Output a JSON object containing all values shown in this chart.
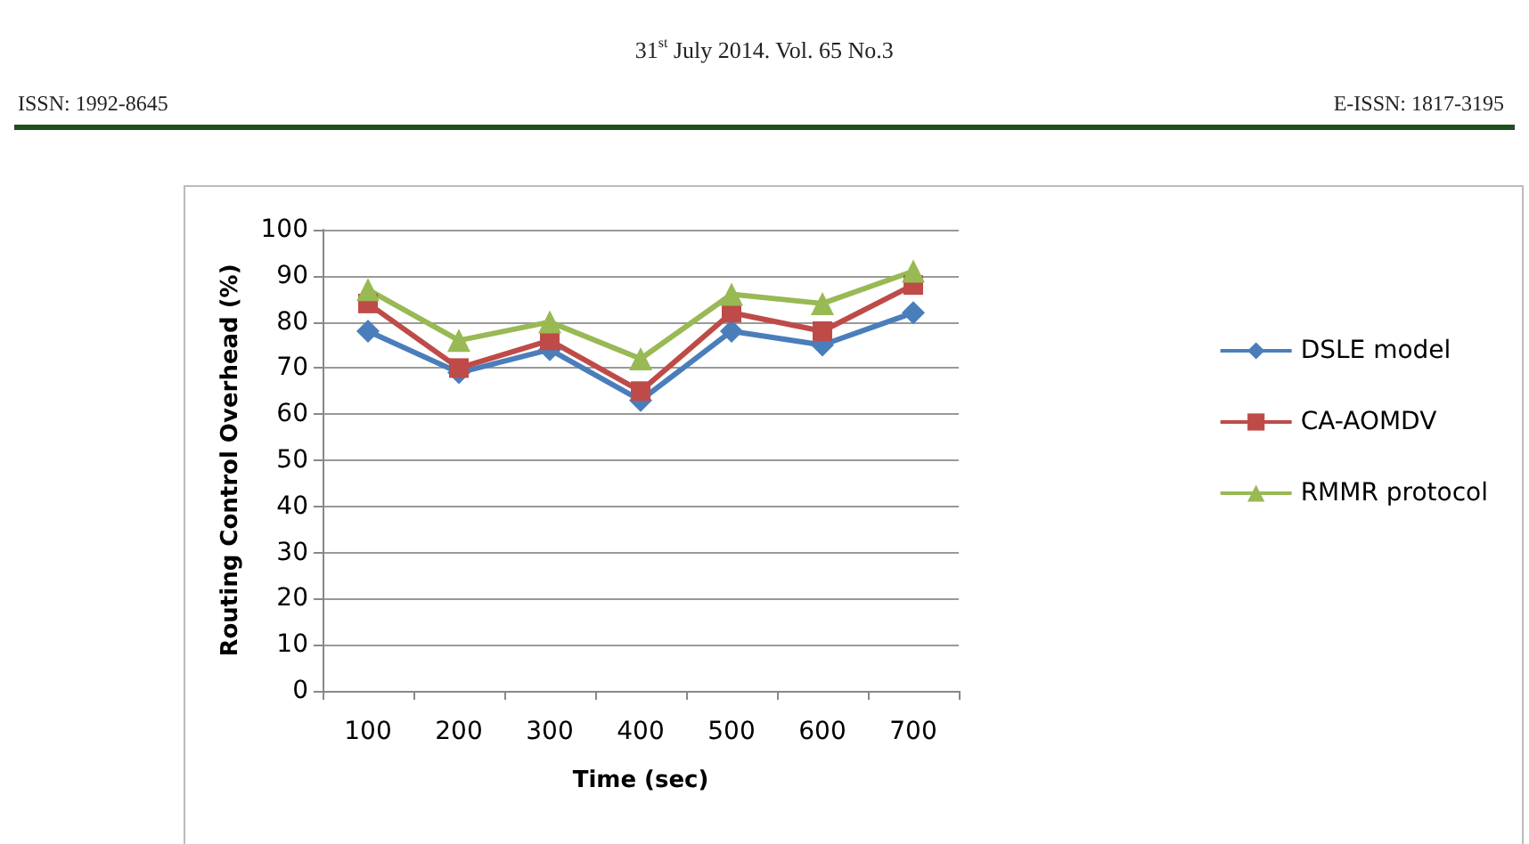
{
  "chart_data": {
    "type": "line",
    "xlabel": "Time (sec)",
    "ylabel": "Routing Control Overhead (%)",
    "categories": [
      "100",
      "200",
      "300",
      "400",
      "500",
      "600",
      "700"
    ],
    "series": [
      {
        "name": "DSLE model",
        "color": "#4a7ebb",
        "values": [
          78,
          69,
          74,
          63,
          78,
          75,
          82
        ],
        "marker": "diamond"
      },
      {
        "name": "CA-AOMDV",
        "color": "#be4b48",
        "values": [
          84,
          70,
          76,
          65,
          82,
          78,
          88
        ],
        "marker": "square"
      },
      {
        "name": "RMMR protocol",
        "color": "#98b954",
        "values": [
          87,
          76,
          80,
          72,
          86,
          84,
          91
        ],
        "marker": "triangle"
      }
    ],
    "ylim": [
      0,
      100
    ],
    "yticks": [
      0,
      10,
      20,
      30,
      40,
      50,
      60,
      70,
      80,
      90,
      100
    ],
    "grid": "y",
    "legend": "right",
    "annotations": [
      "31$^{st}$ July 2014. Vol. 65 No.3",
      "ISSN: 1992-8645",
      "E-ISSN: 1817-3195"
    ]
  }
}
